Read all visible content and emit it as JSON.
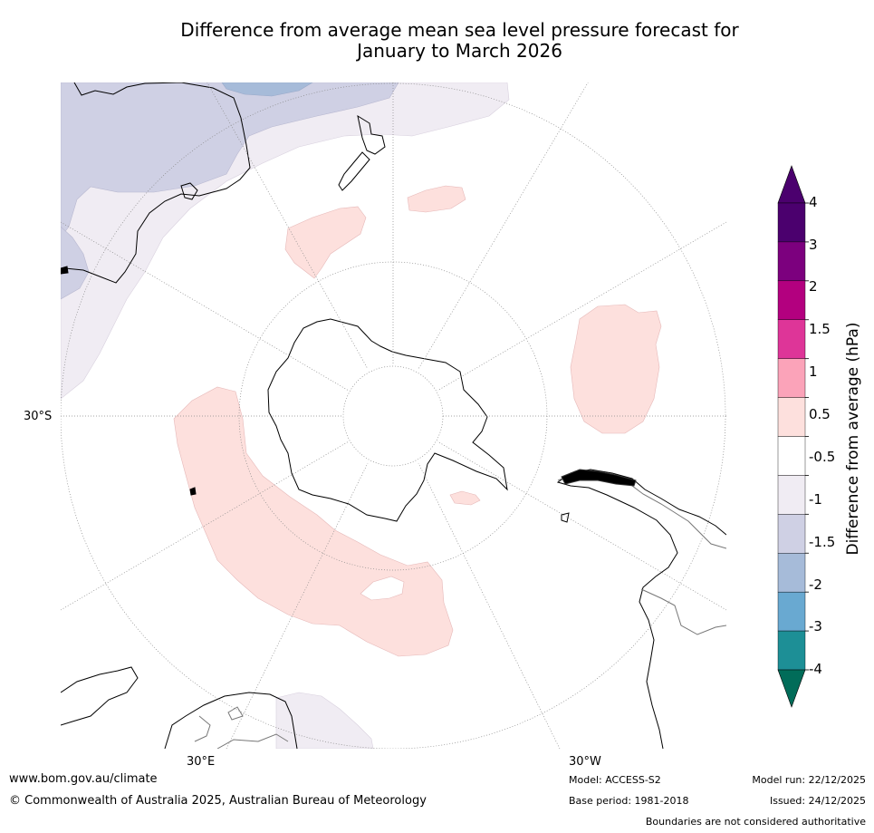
{
  "title": {
    "line1": "Difference from average mean sea level pressure forecast for",
    "line2": "January to March 2026"
  },
  "map": {
    "projection": "south polar stereographic",
    "labels": {
      "lat_30s": "30°S",
      "lon_30e": "30°E",
      "lon_30w": "30°W"
    }
  },
  "colorbar": {
    "title": "Difference from average (hPa)",
    "bins": [
      {
        "label": "4",
        "color": "#4b006e"
      },
      {
        "label": "3",
        "color": "#7c007e"
      },
      {
        "label": "2",
        "color": "#b3007f"
      },
      {
        "label": "1.5",
        "color": "#de3598"
      },
      {
        "label": "1",
        "color": "#fba3b9"
      },
      {
        "label": "0.5",
        "color": "#fde0dd"
      },
      {
        "label": "-0.5",
        "color": "#ffffff"
      },
      {
        "label": "-1",
        "color": "#f0ecf3"
      },
      {
        "label": "-1.5",
        "color": "#cfd0e4"
      },
      {
        "label": "-2",
        "color": "#a6bbd9"
      },
      {
        "label": "-3",
        "color": "#69a9d1"
      },
      {
        "label": "-4",
        "color": "#1d8f96"
      },
      {
        "label": "",
        "color": "#016c59"
      }
    ],
    "colors": {
      "top_extend": "#4b006e",
      "bottom_extend": "#016c59"
    }
  },
  "footer": {
    "url": "www.bom.gov.au/climate",
    "copyright": "© Commonwealth of Australia 2025, Australian Bureau of Meteorology",
    "model": "Model: ACCESS-S2",
    "base_period": "Base period: 1981-2018",
    "model_run": "Model run: 22/12/2025",
    "issued": "Issued: 24/12/2025",
    "disclaimer": "Boundaries are not considered authoritative"
  }
}
